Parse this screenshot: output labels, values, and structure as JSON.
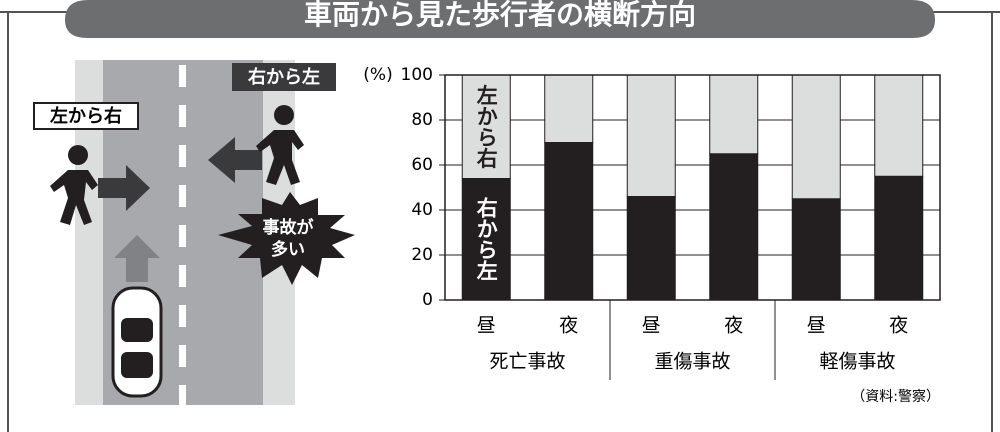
{
  "title": "車両から見た歩行者の横断方向",
  "illustration": {
    "left_label": "左から右",
    "right_label": "右から左",
    "burst_lines": [
      "事故が",
      "多い"
    ]
  },
  "chart_data": {
    "type": "stacked-bar",
    "y_label": "(%)",
    "categories": [
      "昼",
      "夜",
      "昼",
      "夜",
      "昼",
      "夜"
    ],
    "groups": [
      "死亡事故",
      "重傷事故",
      "軽傷事故"
    ],
    "series": [
      {
        "name": "右から左",
        "color": "#231f20",
        "values": [
          54,
          70,
          46,
          65,
          45,
          55
        ]
      },
      {
        "name": "左から右",
        "color": "#dcdddd",
        "values": [
          46,
          30,
          54,
          35,
          55,
          45
        ]
      }
    ],
    "ylim": [
      0,
      100
    ],
    "yticks": [
      0,
      20,
      40,
      60,
      80,
      100
    ],
    "grid": true,
    "source": "（資料:警察）"
  }
}
